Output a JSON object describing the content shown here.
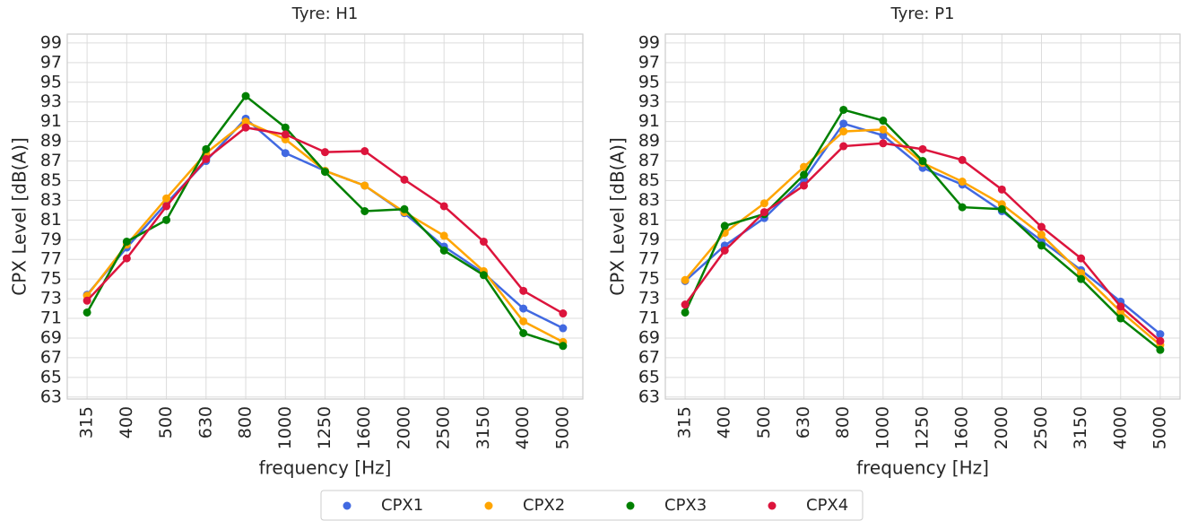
{
  "chart_data": [
    {
      "type": "line",
      "title": "Tyre: H1",
      "xlabel": "frequency [Hz]",
      "ylabel": "CPX Level [dB(A)]",
      "categories": [
        "315",
        "400",
        "500",
        "630",
        "800",
        "1000",
        "1250",
        "1600",
        "2000",
        "2500",
        "3150",
        "4000",
        "5000"
      ],
      "ylim": [
        62.8,
        99.9
      ],
      "yticks": [
        63,
        65,
        67,
        69,
        71,
        73,
        75,
        77,
        79,
        81,
        83,
        85,
        87,
        89,
        91,
        93,
        95,
        97,
        99
      ],
      "grid": true,
      "series": [
        {
          "name": "CPX1",
          "color": "#4169e1",
          "values": [
            73.4,
            78.2,
            82.7,
            87.0,
            91.3,
            87.8,
            86.0,
            84.5,
            81.7,
            78.3,
            75.6,
            72.0,
            70.0
          ]
        },
        {
          "name": "CPX2",
          "color": "#ffa500",
          "values": [
            73.3,
            78.5,
            83.2,
            87.8,
            91.0,
            89.2,
            86.0,
            84.5,
            81.8,
            79.4,
            75.8,
            70.7,
            68.6
          ]
        },
        {
          "name": "CPX3",
          "color": "#008000",
          "values": [
            71.6,
            78.8,
            81.0,
            88.2,
            93.6,
            90.4,
            85.9,
            81.9,
            82.1,
            77.9,
            75.4,
            69.5,
            68.2
          ]
        },
        {
          "name": "CPX4",
          "color": "#dc143c",
          "values": [
            72.8,
            77.1,
            82.4,
            87.2,
            90.4,
            89.7,
            87.9,
            88.0,
            85.1,
            82.4,
            78.8,
            73.8,
            71.5
          ]
        }
      ]
    },
    {
      "type": "line",
      "title": "Tyre: P1",
      "xlabel": "frequency [Hz]",
      "ylabel": "CPX Level [dB(A)]",
      "categories": [
        "315",
        "400",
        "500",
        "630",
        "800",
        "1000",
        "1250",
        "1600",
        "2000",
        "2500",
        "3150",
        "4000",
        "5000"
      ],
      "ylim": [
        62.8,
        99.9
      ],
      "yticks": [
        63,
        65,
        67,
        69,
        71,
        73,
        75,
        77,
        79,
        81,
        83,
        85,
        87,
        89,
        91,
        93,
        95,
        97,
        99
      ],
      "grid": true,
      "series": [
        {
          "name": "CPX1",
          "color": "#4169e1",
          "values": [
            74.8,
            78.4,
            81.2,
            85.1,
            90.8,
            89.6,
            86.3,
            84.6,
            81.9,
            78.9,
            75.9,
            72.7,
            69.4
          ]
        },
        {
          "name": "CPX2",
          "color": "#ffa500",
          "values": [
            74.9,
            79.7,
            82.7,
            86.4,
            90.0,
            90.2,
            86.8,
            84.9,
            82.6,
            79.5,
            75.6,
            71.7,
            68.3
          ]
        },
        {
          "name": "CPX3",
          "color": "#008000",
          "values": [
            71.6,
            80.4,
            81.6,
            85.6,
            92.2,
            91.1,
            87.0,
            82.3,
            82.1,
            78.4,
            75.0,
            71.0,
            67.8
          ]
        },
        {
          "name": "CPX4",
          "color": "#dc143c",
          "values": [
            72.4,
            77.9,
            81.8,
            84.5,
            88.5,
            88.8,
            88.2,
            87.1,
            84.1,
            80.3,
            77.1,
            72.2,
            68.7
          ]
        }
      ]
    }
  ]
}
